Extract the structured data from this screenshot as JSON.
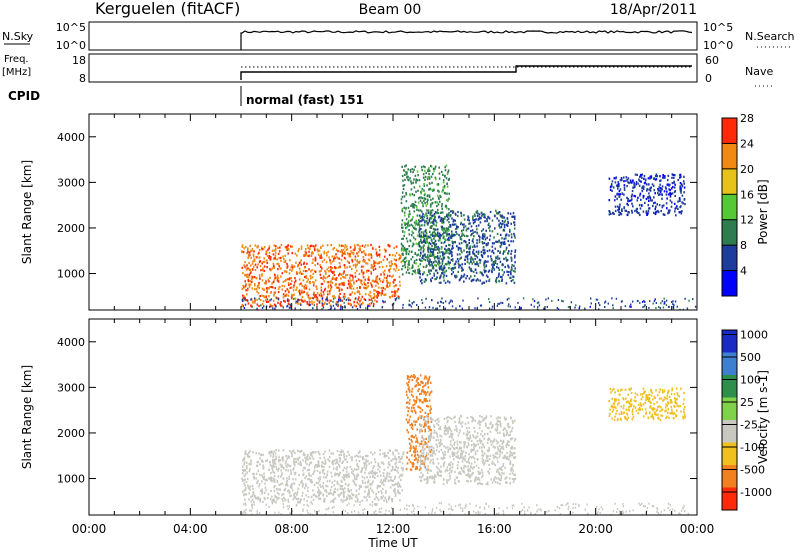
{
  "header": {
    "station": "Kerguelen (fitACF)",
    "beam": "Beam 00",
    "date": "18/Apr/2011"
  },
  "noise_panel": {
    "left_label": "N.Sky",
    "left_ticks": [
      "10^5",
      "10^0"
    ],
    "right_ticks": [
      "10^5",
      "10^0"
    ],
    "right_label": "N.Search"
  },
  "freq_panel": {
    "left_label_line1": "Freq.",
    "left_label_line2": "[MHz]",
    "left_ticks": [
      "18",
      "8"
    ],
    "right_ticks": [
      "60",
      "0"
    ],
    "right_label": "Nave"
  },
  "cpid": {
    "label": "CPID",
    "value": "normal (fast) 151"
  },
  "chart_data": [
    {
      "type": "heatmap",
      "parameter": "Power",
      "ylabel": "Slant Range [km]",
      "xlabel": "",
      "x_range_hours": [
        0,
        24
      ],
      "ylim": [
        200,
        4500
      ],
      "yticks": [
        1000,
        2000,
        3000,
        4000
      ],
      "colorbar_label": "Power [dB]",
      "colorbar_ticks": [
        "4",
        "8",
        "12",
        "16",
        "20",
        "24",
        "28"
      ],
      "colorbar_colors": [
        "#0000ff",
        "#1e3c9c",
        "#2e7d4f",
        "#55c935",
        "#e6c21a",
        "#f08a14",
        "#ff2a0a"
      ],
      "echo_regions": [
        {
          "t": [
            6.0,
            12.3
          ],
          "r": [
            500,
            1650
          ],
          "value_db": 26
        },
        {
          "t": [
            6.0,
            11.6
          ],
          "r": [
            300,
            500
          ],
          "value_db": 27
        },
        {
          "t": [
            12.3,
            14.2
          ],
          "r": [
            1000,
            3400
          ],
          "value_db": 12
        },
        {
          "t": [
            13.0,
            16.8
          ],
          "r": [
            800,
            2400
          ],
          "value_db": 8
        },
        {
          "t": [
            20.5,
            23.5
          ],
          "r": [
            2300,
            3200
          ],
          "value_db": 6
        }
      ]
    },
    {
      "type": "heatmap",
      "parameter": "Velocity",
      "ylabel": "Slant Range [km]",
      "xlabel": "Time UT",
      "x_range_hours": [
        0,
        24
      ],
      "xticks": [
        "00:00",
        "04:00",
        "08:00",
        "12:00",
        "16:00",
        "20:00",
        "00:00"
      ],
      "ylim": [
        200,
        4500
      ],
      "yticks": [
        1000,
        2000,
        3000,
        4000
      ],
      "colorbar_label": "Velocity [m s-1]",
      "colorbar_ticks": [
        "1000",
        "500",
        "100",
        "25",
        "-25",
        "-100",
        "-500",
        "-1000"
      ],
      "colorbar_colors": [
        "#1a2bc4",
        "#3f7fd0",
        "#2e8f4a",
        "#7fd24a",
        "#c8c8c0",
        "#f0c020",
        "#f08020",
        "#ff2a0a"
      ],
      "echo_regions": [
        {
          "t": [
            6.0,
            12.4
          ],
          "r": [
            500,
            1650
          ],
          "value_ms": 0
        },
        {
          "t": [
            12.5,
            13.5
          ],
          "r": [
            1200,
            3300
          ],
          "value_ms": -300
        },
        {
          "t": [
            13.0,
            16.8
          ],
          "r": [
            900,
            2400
          ],
          "value_ms": 0
        },
        {
          "t": [
            20.5,
            23.5
          ],
          "r": [
            2300,
            3000
          ],
          "value_ms": -80
        }
      ]
    }
  ]
}
